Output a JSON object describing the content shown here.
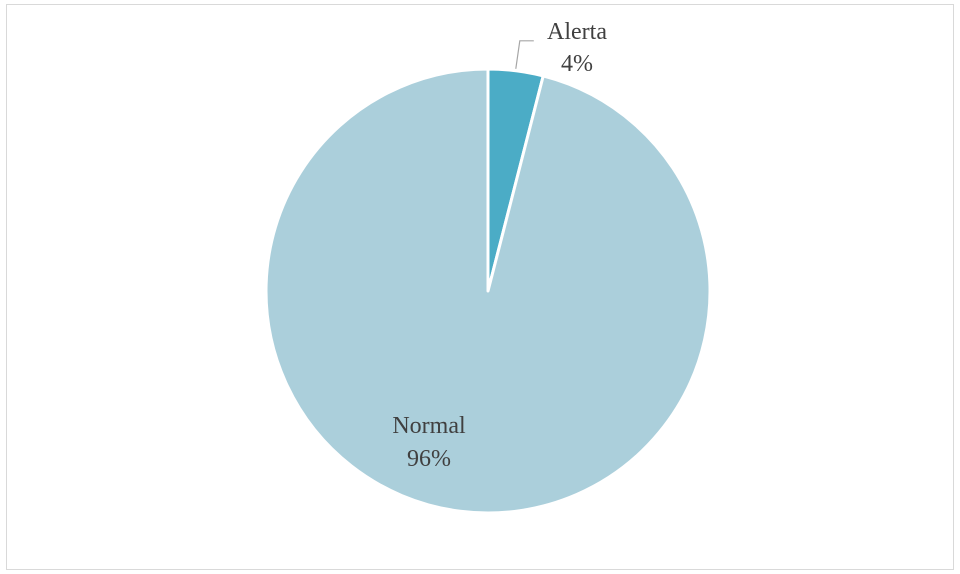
{
  "chart_data": {
    "type": "pie",
    "title": "",
    "categories": [
      "Alerta",
      "Normal"
    ],
    "values": [
      4,
      96
    ],
    "unit": "%",
    "percent_labels": [
      "4%",
      "96%"
    ],
    "colors": [
      "#4bacc6",
      "#abcfdb"
    ],
    "start_angle": "12 o'clock",
    "direction": "clockwise",
    "legend": "none",
    "label_position": "Alerta outside with leader line; Normal inside"
  }
}
